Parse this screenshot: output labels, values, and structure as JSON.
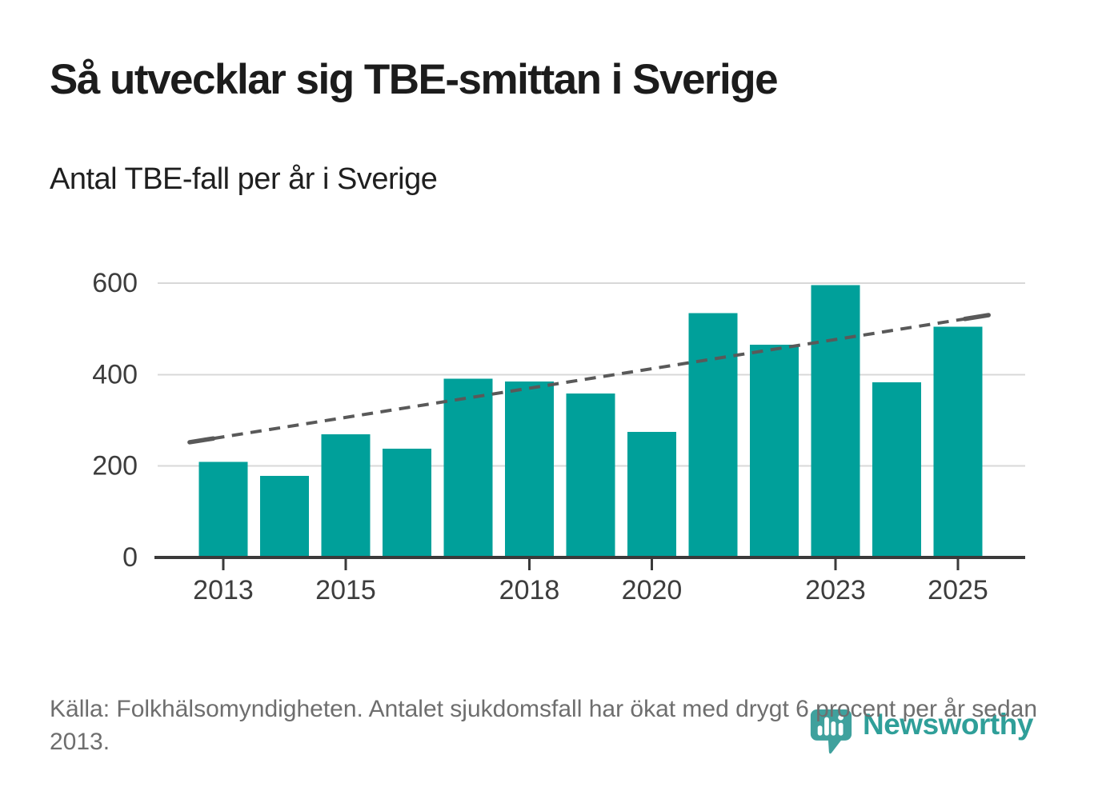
{
  "header": {
    "title": "Så utvecklar sig TBE-smittan i Sverige",
    "subtitle": "Antal TBE-fall per år i Sverige"
  },
  "footer": {
    "source_note": "Källa: Folkhälsomyndigheten. Antalet sjukdomsfall har ökat med drygt 6 procent per år sedan 2013."
  },
  "logo": {
    "wordmark": "Newsworthy",
    "icon": "pin-with-bar-chart-and-exclamation",
    "color": "#2f9f99"
  },
  "chart_data": {
    "type": "bar",
    "title": "Så utvecklar sig TBE-smittan i Sverige",
    "subtitle": "Antal TBE-fall per år i Sverige",
    "series_label": "Antal TBE-fall per år i Sverige",
    "categories": [
      2013,
      2014,
      2015,
      2016,
      2017,
      2018,
      2019,
      2020,
      2021,
      2022,
      2023,
      2024,
      2025
    ],
    "values": [
      209,
      178,
      269,
      238,
      391,
      385,
      359,
      275,
      534,
      465,
      596,
      383,
      505
    ],
    "bar_color": "#00a09a",
    "trendline": {
      "style": "dashed",
      "color": "#595959",
      "start": {
        "year": 2012.45,
        "value": 252
      },
      "end": {
        "year": 2025.5,
        "value": 530
      },
      "meaning": "ökning med drygt 6 procent per år sedan 2013"
    },
    "ylim": [
      0,
      640
    ],
    "yticks": [
      0,
      200,
      400,
      600
    ],
    "xticks": [
      2013,
      2015,
      2018,
      2020,
      2023,
      2025
    ],
    "grid": "horizontal",
    "legend": "none",
    "axis_color": "#3a3a3a",
    "grid_color": "#d8d8d8",
    "tick_label_color": "#3d3d3d"
  }
}
